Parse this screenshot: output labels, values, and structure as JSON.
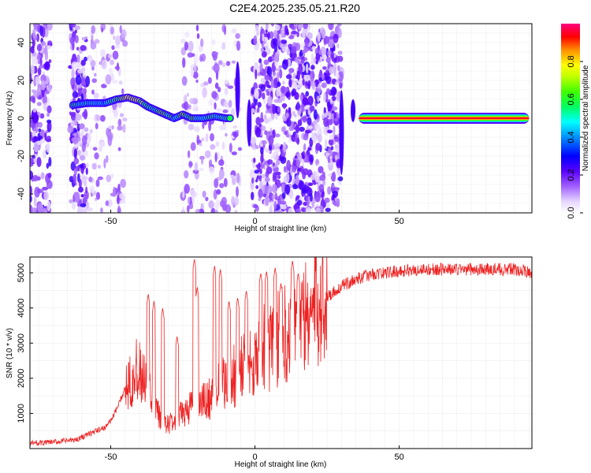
{
  "title": "C2E4.2025.235.05.21.R20",
  "chart_data": [
    {
      "type": "heatmap",
      "xlabel": "Height of straight line (km)",
      "ylabel": "Frequency (Hz)",
      "xlim": [
        -78,
        96
      ],
      "ylim": [
        -50,
        50
      ],
      "x_ticks": [
        -50,
        0,
        50
      ],
      "y_ticks": [
        -40,
        -20,
        0,
        20,
        40
      ],
      "x_tick_labels": [
        "-50",
        "0",
        "50"
      ],
      "y_tick_labels": [
        "-40",
        "-20",
        "0",
        "20",
        "40"
      ],
      "grid": true,
      "colorbar": {
        "label": "Normalized spectral amplitude",
        "range": [
          0,
          1
        ],
        "ticks": [
          0.0,
          0.2,
          0.4,
          0.6,
          0.8
        ],
        "tick_labels": [
          "0.0",
          "0.2",
          "0.4",
          "0.6",
          "0.8"
        ],
        "colors": [
          "#ffffff",
          "#c8a0ff",
          "#7a00ff",
          "#0000ff",
          "#00ffff",
          "#00ff00",
          "#ffff00",
          "#ff8000",
          "#ff0000",
          "#ff0080"
        ]
      },
      "noise_regions": [
        {
          "x_range": [
            -78,
            -71
          ],
          "level": "strong"
        },
        {
          "x_range": [
            -64,
            -58
          ],
          "level": "strong"
        },
        {
          "x_range": [
            -58,
            -52
          ],
          "level": "weak"
        },
        {
          "x_range": [
            -52,
            -45
          ],
          "level": "weak"
        },
        {
          "x_range": [
            -25,
            -5
          ],
          "level": "weak"
        },
        {
          "x_range": [
            -1,
            30
          ],
          "level": "strong"
        }
      ],
      "signal_trace": [
        {
          "x": -63,
          "y": 7,
          "a": 0.55
        },
        {
          "x": -58,
          "y": 8,
          "a": 0.5
        },
        {
          "x": -52,
          "y": 8,
          "a": 0.45
        },
        {
          "x": -48,
          "y": 10,
          "a": 0.6
        },
        {
          "x": -44,
          "y": 11,
          "a": 0.7
        },
        {
          "x": -40,
          "y": 9,
          "a": 0.7
        },
        {
          "x": -37,
          "y": 6,
          "a": 0.6
        },
        {
          "x": -34,
          "y": 4,
          "a": 0.55
        },
        {
          "x": -31,
          "y": 2,
          "a": 0.65
        },
        {
          "x": -28,
          "y": 0,
          "a": 0.5
        },
        {
          "x": -25,
          "y": 2,
          "a": 0.6
        },
        {
          "x": -22,
          "y": 0,
          "a": 0.55
        },
        {
          "x": -18,
          "y": 0,
          "a": 0.55
        },
        {
          "x": -14,
          "y": 1,
          "a": 0.55
        },
        {
          "x": -10,
          "y": 0,
          "a": 0.55
        },
        {
          "x": -8,
          "y": 0,
          "a": 0.5
        }
      ],
      "constant_line": {
        "x_start": 36,
        "x_end": 95,
        "y": 0,
        "peak_amplitude": 0.95
      }
    },
    {
      "type": "line",
      "xlabel": "Height of straight line (km)",
      "ylabel": "SNR (10 * v/v)",
      "xlim": [
        -78,
        96
      ],
      "ylim": [
        0,
        5450
      ],
      "x_ticks": [
        -50,
        0,
        50
      ],
      "y_ticks": [
        1000,
        2000,
        3000,
        4000,
        5000
      ],
      "x_tick_labels": [
        "-50",
        "0",
        "50"
      ],
      "y_tick_labels": [
        "1000",
        "2000",
        "3000",
        "4000",
        "5000"
      ],
      "grid": true,
      "line_color": "#ee2222",
      "series": [
        {
          "x": [
            -78,
            -70,
            -62,
            -58,
            -55,
            -52,
            -50,
            -48,
            -46,
            -44,
            -42,
            -40,
            -38,
            -36,
            -34,
            -32,
            -30,
            -28,
            -26,
            -24,
            -22,
            -20,
            -18,
            -16,
            -14,
            -12,
            -10,
            -8,
            -6,
            -4,
            -2,
            0,
            2,
            4,
            6,
            8,
            10,
            12,
            14,
            16,
            18,
            20,
            24,
            28,
            32,
            36,
            40,
            45,
            50,
            60,
            70,
            80,
            90,
            96
          ],
          "y": [
            150,
            180,
            250,
            400,
            500,
            600,
            800,
            1100,
            1500,
            2000,
            2200,
            2100,
            1800,
            1500,
            1000,
            800,
            700,
            750,
            900,
            1100,
            1200,
            1250,
            1300,
            1400,
            1600,
            1750,
            1900,
            2000,
            2200,
            2400,
            2500,
            2600,
            2800,
            2900,
            2950,
            3100,
            3300,
            3400,
            3500,
            3600,
            3750,
            3950,
            4250,
            4500,
            4700,
            4850,
            4950,
            5000,
            5050,
            5100,
            5100,
            5100,
            5100,
            5000
          ],
          "peaks": [
            {
              "x": -37,
              "y": 4400
            },
            {
              "x": -35,
              "y": 4200
            },
            {
              "x": -32,
              "y": 4000
            },
            {
              "x": -27,
              "y": 3200
            },
            {
              "x": -21,
              "y": 5400
            },
            {
              "x": -20,
              "y": 4600
            },
            {
              "x": -14,
              "y": 5200
            },
            {
              "x": -12,
              "y": 5100
            },
            {
              "x": -9,
              "y": 4200
            },
            {
              "x": -6,
              "y": 4300
            },
            {
              "x": -3,
              "y": 4500
            },
            {
              "x": 2,
              "y": 5000
            },
            {
              "x": 4,
              "y": 5050
            },
            {
              "x": 7,
              "y": 5150
            },
            {
              "x": 9,
              "y": 4700
            },
            {
              "x": 13,
              "y": 5350
            },
            {
              "x": 15,
              "y": 5000
            }
          ]
        }
      ]
    }
  ]
}
